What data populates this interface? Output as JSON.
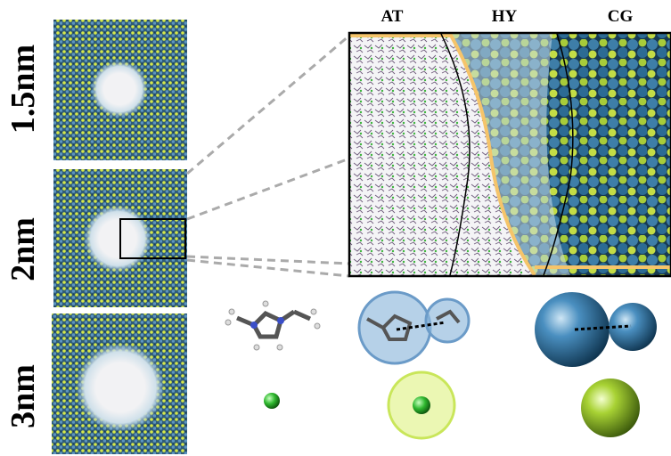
{
  "labels": {
    "sizes": [
      "1.5nm",
      "2nm",
      "3nm"
    ],
    "regions": [
      "AT",
      "HY",
      "CG"
    ]
  }
}
